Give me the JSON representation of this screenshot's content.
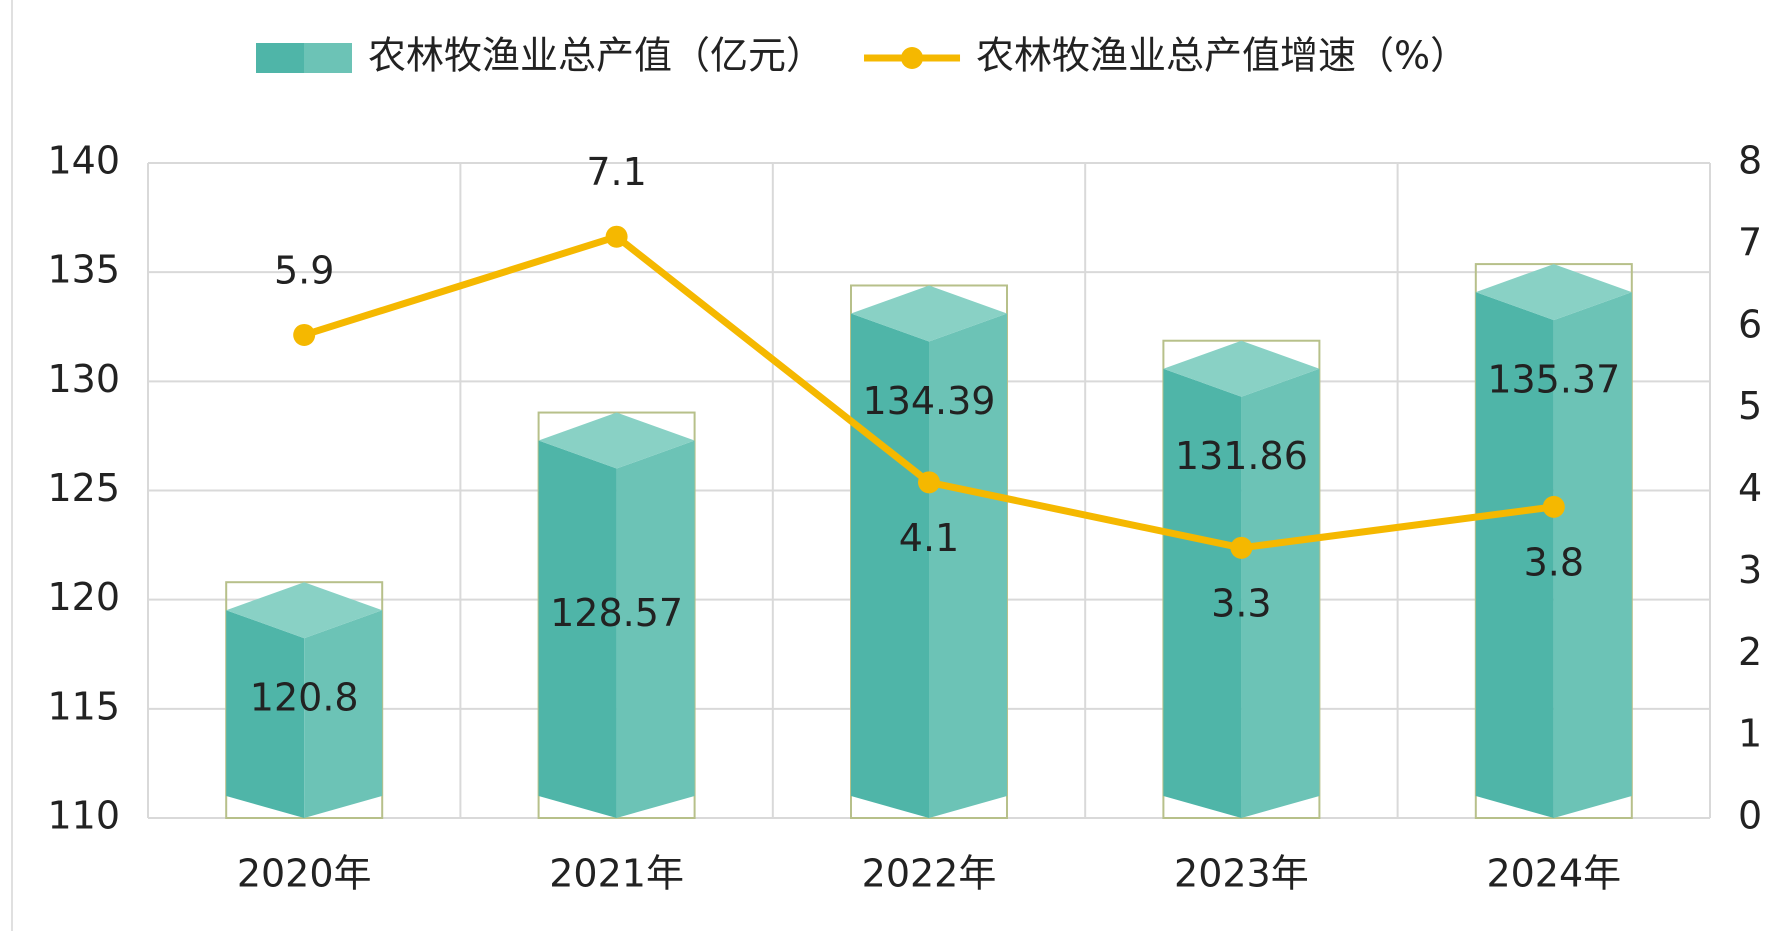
{
  "chart_data": {
    "type": "bar",
    "categories": [
      "2020年",
      "2021年",
      "2022年",
      "2023年",
      "2024年"
    ],
    "series": [
      {
        "name": "农林牧渔业总产值（亿元）",
        "type": "bar",
        "color": "#4fb5a8",
        "values": [
          120.8,
          128.57,
          134.39,
          131.86,
          135.37
        ]
      },
      {
        "name": "农林牧渔业总产值增速（%）",
        "type": "line",
        "axis": "y2",
        "color": "#f5b800",
        "values": [
          5.9,
          7.1,
          4.1,
          3.3,
          3.8
        ]
      }
    ],
    "ylim": [
      110,
      140
    ],
    "yticks": [
      110,
      115,
      120,
      125,
      130,
      135,
      140
    ],
    "y2lim": [
      0,
      8
    ],
    "y2ticks": [
      0,
      1,
      2,
      3,
      4,
      5,
      6,
      7,
      8
    ],
    "grid": true,
    "legend": "top"
  }
}
